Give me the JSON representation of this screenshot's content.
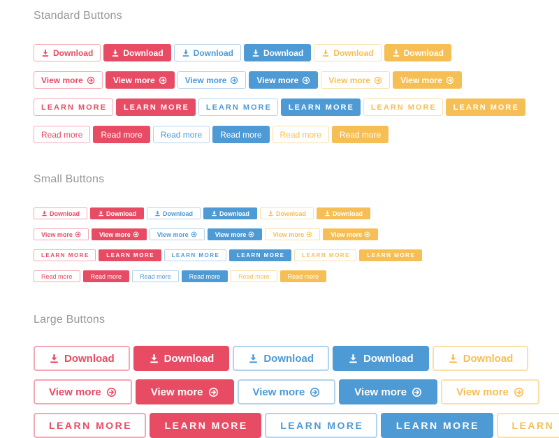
{
  "palette": {
    "red": "#e84c64",
    "red_border": "#f3a7b3",
    "blue": "#4d9ad5",
    "blue_border": "#b3d2ec",
    "yellow": "#f6bf55",
    "yellow_text": "#f6bf55",
    "yellow_border": "#fbdfa8",
    "heading": "#97979c",
    "solid_text": "#ffffff",
    "page_bg": "#ffffff"
  },
  "sections": [
    {
      "id": "standard",
      "title": "Standard Buttons",
      "variants": [
        "red-outline",
        "red-solid",
        "blue-outline",
        "blue-solid",
        "yellow-outline",
        "yellow-solid"
      ],
      "rows": [
        {
          "id": "download",
          "label": "Download",
          "icon": "download-icon",
          "icon_position": "before"
        },
        {
          "id": "view-more",
          "label": "View more",
          "icon": "arrow-circle-right-icon",
          "icon_position": "after"
        },
        {
          "id": "learn-more",
          "label": "LEARN MORE",
          "icon": null
        },
        {
          "id": "read-more",
          "label": "Read more",
          "icon": null
        }
      ]
    },
    {
      "id": "small",
      "title": "Small Buttons",
      "variants": [
        "red-outline",
        "red-solid",
        "blue-outline",
        "blue-solid",
        "yellow-outline",
        "yellow-solid"
      ],
      "rows": [
        {
          "id": "download",
          "label": "Download",
          "icon": "download-icon",
          "icon_position": "before"
        },
        {
          "id": "view-more",
          "label": "View more",
          "icon": "arrow-circle-right-icon",
          "icon_position": "after"
        },
        {
          "id": "learn-more",
          "label": "LEARN MORE",
          "icon": null
        },
        {
          "id": "read-more",
          "label": "Read more",
          "icon": null
        }
      ]
    },
    {
      "id": "large",
      "title": "Large Buttons",
      "variants": [
        "red-outline",
        "red-solid",
        "blue-outline",
        "blue-solid",
        "yellow-outline"
      ],
      "rows": [
        {
          "id": "download",
          "label": "Download",
          "icon": "download-icon",
          "icon_position": "before"
        },
        {
          "id": "view-more",
          "label": "View more",
          "icon": "arrow-circle-right-icon",
          "icon_position": "after"
        },
        {
          "id": "learn-more",
          "label": "LEARN MORE",
          "icon": null
        }
      ]
    }
  ]
}
